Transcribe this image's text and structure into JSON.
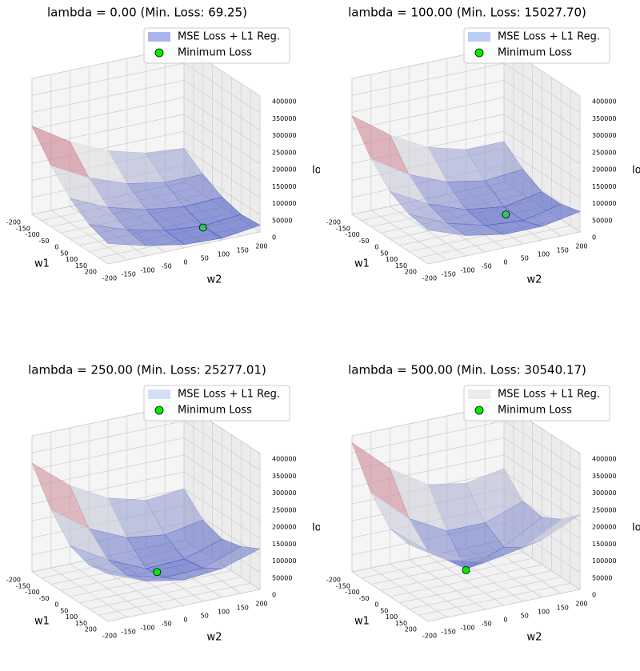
{
  "chart_data": [
    {
      "type": "surface3d",
      "title": "lambda = 0.00 (Min. Loss: 69.25)",
      "xlabel": "w1",
      "ylabel": "w2",
      "zlabel": "loss",
      "xlim": [
        -200,
        200
      ],
      "xticks": [
        -200,
        -150,
        -100,
        -50,
        0,
        50,
        100,
        150,
        200
      ],
      "ylim": [
        -200,
        200
      ],
      "yticks": [
        -200,
        -150,
        -100,
        -50,
        0,
        50,
        100,
        150,
        200
      ],
      "zlim": [
        0,
        400000
      ],
      "zticks": [
        0,
        50000,
        100000,
        150000,
        200000,
        250000,
        300000,
        350000,
        400000
      ],
      "series": [
        {
          "name": "MSE Loss + L1 Reg.",
          "color": "#aab5ee",
          "x": [
            -200,
            -100,
            0,
            100,
            200
          ],
          "y": [
            -200,
            -100,
            0,
            100,
            200
          ],
          "z": [
            [
              260000,
              190000,
              140000,
              110000,
              100000
            ],
            [
              180000,
              120000,
              80000,
              60000,
              60000
            ],
            [
              120000,
              70000,
              40000,
              25000,
              30000
            ],
            [
              80000,
              40000,
              15000,
              5000,
              15000
            ],
            [
              60000,
              30000,
              10000,
              5000,
              20000
            ]
          ]
        },
        {
          "name": "Minimum Loss",
          "color": "#00ee00",
          "w1": 100,
          "w2": 100,
          "loss": 69.25
        }
      ]
    },
    {
      "type": "surface3d",
      "title": "lambda = 100.00 (Min. Loss: 15027.70)",
      "xlabel": "w1",
      "ylabel": "w2",
      "zlabel": "loss",
      "xlim": [
        -200,
        200
      ],
      "xticks": [
        -200,
        -150,
        -100,
        -50,
        0,
        50,
        100,
        150,
        200
      ],
      "ylim": [
        -200,
        200
      ],
      "yticks": [
        -200,
        -150,
        -100,
        -50,
        0,
        50,
        100,
        150,
        200
      ],
      "zlim": [
        0,
        400000
      ],
      "zticks": [
        0,
        50000,
        100000,
        150000,
        200000,
        250000,
        300000,
        350000,
        400000
      ],
      "series": [
        {
          "name": "MSE Loss + L1 Reg.",
          "color": "#bccdf5",
          "x": [
            -200,
            -100,
            0,
            100,
            200
          ],
          "y": [
            -200,
            -100,
            0,
            100,
            200
          ],
          "z": [
            [
              290000,
              210000,
              150000,
              120000,
              120000
            ],
            [
              200000,
              130000,
              85000,
              65000,
              75000
            ],
            [
              140000,
              80000,
              40000,
              25000,
              45000
            ],
            [
              110000,
              60000,
              30000,
              20000,
              45000
            ],
            [
              100000,
              60000,
              40000,
              40000,
              60000
            ]
          ]
        },
        {
          "name": "Minimum Loss",
          "color": "#00ee00",
          "w1": 30,
          "w2": 90,
          "loss": 15027.7
        }
      ]
    },
    {
      "type": "surface3d",
      "title": "lambda = 250.00 (Min. Loss: 25277.01)",
      "xlabel": "w1",
      "ylabel": "w2",
      "zlabel": "loss",
      "xlim": [
        -200,
        200
      ],
      "xticks": [
        -200,
        -150,
        -100,
        -50,
        0,
        50,
        100,
        150,
        200
      ],
      "ylim": [
        -200,
        200
      ],
      "yticks": [
        -200,
        -150,
        -100,
        -50,
        0,
        50,
        100,
        150,
        200
      ],
      "zlim": [
        0,
        400000
      ],
      "zticks": [
        0,
        50000,
        100000,
        150000,
        200000,
        250000,
        300000,
        350000,
        400000
      ],
      "series": [
        {
          "name": "MSE Loss + L1 Reg.",
          "color": "#d4def6",
          "x": [
            -200,
            -100,
            0,
            100,
            200
          ],
          "y": [
            -200,
            -100,
            0,
            100,
            200
          ],
          "z": [
            [
              320000,
              230000,
              170000,
              140000,
              150000
            ],
            [
              220000,
              140000,
              90000,
              75000,
              95000
            ],
            [
              150000,
              85000,
              35000,
              40000,
              75000
            ],
            [
              130000,
              75000,
              45000,
              50000,
              90000
            ],
            [
              140000,
              95000,
              75000,
              85000,
              120000
            ]
          ]
        },
        {
          "name": "Minimum Loss",
          "color": "#00ee00",
          "w1": 14,
          "w2": 22,
          "loss": 25277.01
        }
      ]
    },
    {
      "type": "surface3d",
      "title": "lambda = 500.00 (Min. Loss: 30540.17)",
      "xlabel": "w1",
      "ylabel": "w2",
      "zlabel": "loss",
      "xlim": [
        -200,
        200
      ],
      "xticks": [
        -200,
        -150,
        -100,
        -50,
        0,
        50,
        100,
        150,
        200
      ],
      "ylim": [
        -200,
        200
      ],
      "yticks": [
        -200,
        -150,
        -100,
        -50,
        0,
        50,
        100,
        150,
        200
      ],
      "zlim": [
        0,
        400000
      ],
      "zticks": [
        0,
        50000,
        100000,
        150000,
        200000,
        250000,
        300000,
        350000,
        400000
      ],
      "series": [
        {
          "name": "MSE Loss + L1 Reg.",
          "color": "#ebebeb",
          "x": [
            -200,
            -100,
            0,
            100,
            200
          ],
          "y": [
            -200,
            -100,
            0,
            100,
            200
          ],
          "z": [
            [
              380000,
              280000,
              210000,
              190000,
              210000
            ],
            [
              270000,
              170000,
              110000,
              110000,
              150000
            ],
            [
              200000,
              110000,
              35000,
              75000,
              140000
            ],
            [
              190000,
              120000,
              90000,
              110000,
              170000
            ],
            [
              210000,
              160000,
              150000,
              170000,
              220000
            ]
          ]
        },
        {
          "name": "Minimum Loss",
          "color": "#00ee00",
          "w1": 0,
          "w2": 0,
          "loss": 30540.17
        }
      ]
    }
  ]
}
